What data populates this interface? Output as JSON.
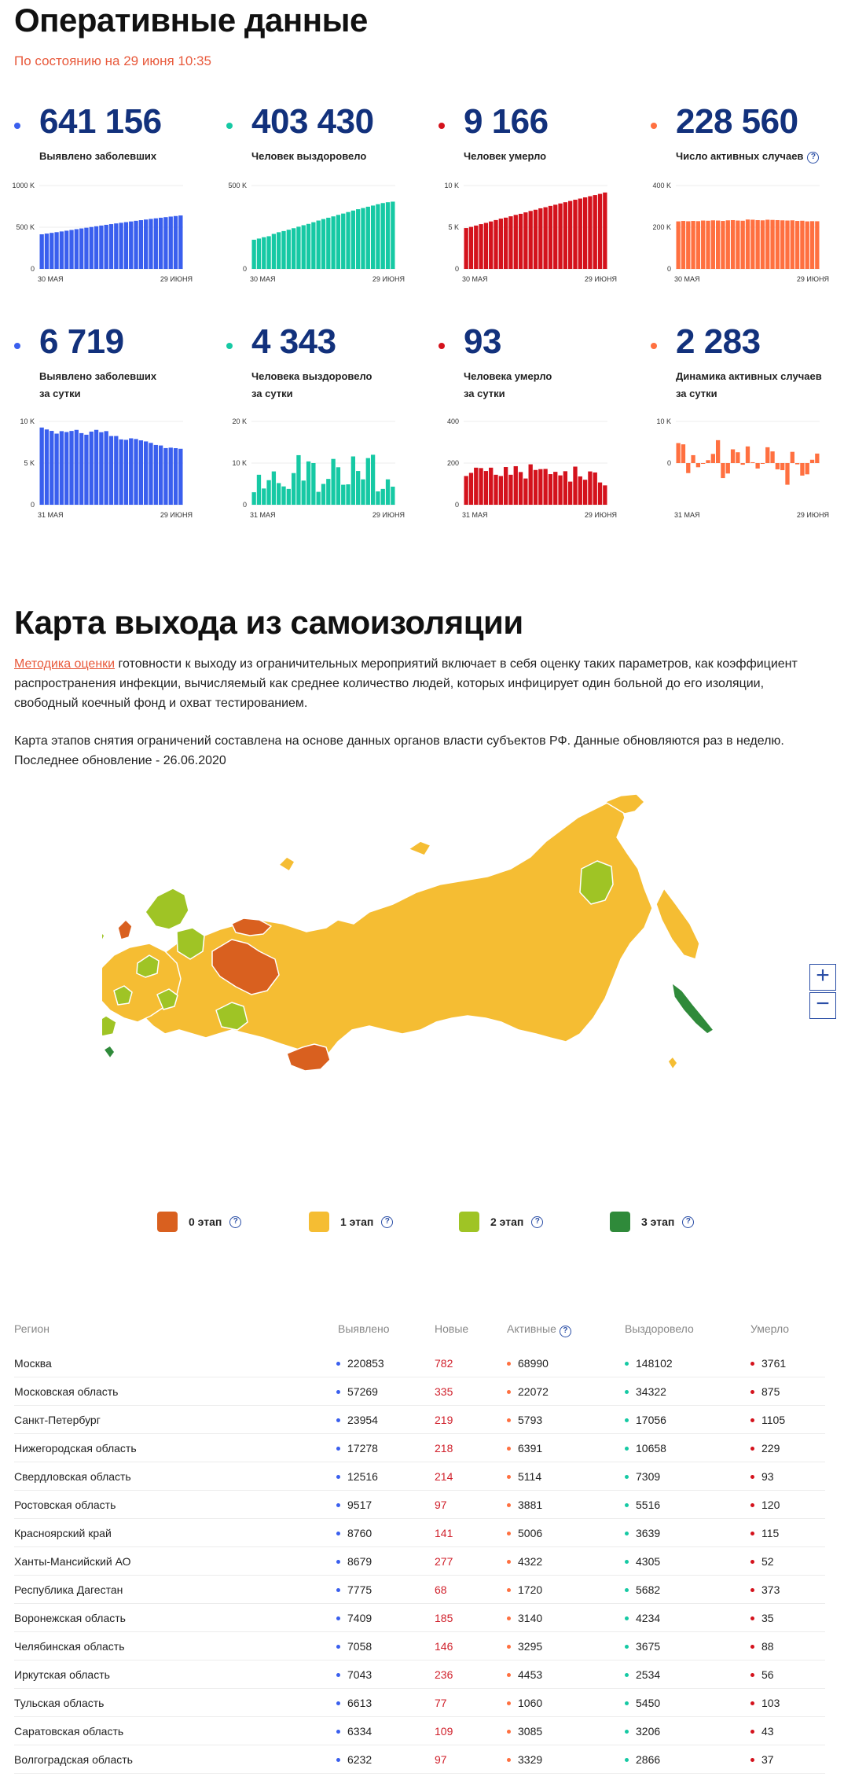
{
  "header": {
    "title": "Оперативные данные",
    "as_of": "По состоянию на 29 июня 10:35"
  },
  "colors": {
    "blue": "#3a5fee",
    "teal": "#16c9a4",
    "red": "#d4121c",
    "orange": "#ff7040",
    "stage0": "#d9601f",
    "stage1": "#f5bd33",
    "stage2": "#9fc425",
    "stage3": "#2f8a3a",
    "number": "#12317c",
    "accent": "#e8593b"
  },
  "stats": [
    {
      "value": "641 156",
      "label1": "Выявлено заболевших",
      "label2": "",
      "color": "#3a5fee"
    },
    {
      "value": "403 430",
      "label1": "Человек выздоровело",
      "label2": "",
      "color": "#16c9a4"
    },
    {
      "value": "9 166",
      "label1": "Человек умерло",
      "label2": "",
      "color": "#d4121c"
    },
    {
      "value": "228 560",
      "label1": "Число активных случаев",
      "label2": "",
      "color": "#ff7040"
    },
    {
      "value": "6 719",
      "label1": "Выявлено заболевших",
      "label2": "за сутки",
      "color": "#3a5fee"
    },
    {
      "value": "4 343",
      "label1": "Человека выздоровело",
      "label2": "за сутки",
      "color": "#16c9a4"
    },
    {
      "value": "93",
      "label1": "Человека умерло",
      "label2": "за сутки",
      "color": "#d4121c"
    },
    {
      "value": "2 283",
      "label1": "Динамика активных случаев",
      "label2": "за сутки",
      "color": "#ff7040"
    }
  ],
  "chart_data": [
    {
      "type": "bar",
      "title": "",
      "x_start": "30 МАЯ",
      "x_end": "29 ИЮНЯ",
      "yticks": [
        "1000 K",
        "500 K",
        "0"
      ],
      "ylim": [
        0,
        1000000
      ],
      "color": "#3a5fee",
      "values": [
        414878,
        423741,
        432277,
        440538,
        449256,
        458102,
        467073,
        476658,
        485253,
        493657,
        502436,
        511423,
        520129,
        528964,
        537210,
        545458,
        553301,
        561091,
        569063,
        576952,
        584680,
        592280,
        599705,
        606881,
        613994,
        620794,
        627646,
        634437,
        641156
      ]
    },
    {
      "type": "bar",
      "title": "",
      "x_start": "30 МАЯ",
      "x_end": "29 ИЮНЯ",
      "yticks": [
        "500 K",
        "0"
      ],
      "ylim": [
        0,
        500000
      ],
      "color": "#16c9a4",
      "values": [
        175000,
        182000,
        190000,
        196000,
        210000,
        220000,
        227000,
        235000,
        244000,
        253000,
        262000,
        270000,
        280000,
        290000,
        299000,
        307000,
        315000,
        324000,
        332000,
        341000,
        350000,
        358000,
        365000,
        373000,
        380000,
        388000,
        395000,
        400000,
        403430
      ]
    },
    {
      "type": "bar",
      "title": "",
      "x_start": "30 МАЯ",
      "x_end": "29 ИЮНЯ",
      "yticks": [
        "10 K",
        "5 K",
        "0"
      ],
      "ylim": [
        0,
        10000
      ],
      "color": "#d4121c",
      "values": [
        4900,
        5040,
        5200,
        5370,
        5520,
        5690,
        5860,
        6030,
        6150,
        6310,
        6480,
        6610,
        6780,
        6950,
        7100,
        7270,
        7400,
        7560,
        7700,
        7850,
        8000,
        8150,
        8300,
        8440,
        8580,
        8720,
        8860,
        9000,
        9166
      ]
    },
    {
      "type": "bar",
      "title": "",
      "x_start": "30 МАЯ",
      "x_end": "29 ИЮНЯ",
      "yticks": [
        "400 K",
        "200 K",
        "0"
      ],
      "ylim": [
        0,
        400000
      ],
      "color": "#ff7040",
      "values": [
        228000,
        230000,
        228500,
        230000,
        229000,
        232000,
        231000,
        233000,
        232000,
        230000,
        233000,
        234000,
        232000,
        231000,
        237000,
        236000,
        234000,
        233000,
        236000,
        235000,
        234000,
        233000,
        232000,
        233000,
        230000,
        231000,
        228000,
        229000,
        228560
      ]
    },
    {
      "type": "bar",
      "title": "",
      "x_start": "31 МАЯ",
      "x_end": "29 ИЮНЯ",
      "yticks": [
        "10 K",
        "5 K",
        "0"
      ],
      "ylim": [
        0,
        10000
      ],
      "color": "#3a5fee",
      "values": [
        9268,
        9035,
        8863,
        8536,
        8831,
        8726,
        8855,
        8985,
        8595,
        8404,
        8779,
        8987,
        8706,
        8835,
        8246,
        8248,
        7843,
        7790,
        7972,
        7889,
        7728,
        7600,
        7425,
        7176,
        7113,
        6800,
        6852,
        6791,
        6719
      ]
    },
    {
      "type": "bar",
      "title": "",
      "x_start": "31 МАЯ",
      "x_end": "29 ИЮНЯ",
      "yticks": [
        "20 K",
        "10 K",
        "0"
      ],
      "ylim": [
        0,
        20000
      ],
      "color": "#16c9a4",
      "values": [
        3000,
        7200,
        3900,
        5900,
        8000,
        5200,
        4400,
        3800,
        7600,
        11900,
        5800,
        10400,
        10000,
        3100,
        5000,
        6200,
        11000,
        9000,
        4800,
        4900,
        11600,
        8100,
        6100,
        11200,
        12000,
        3200,
        3800,
        6100,
        4343
      ]
    },
    {
      "type": "bar",
      "title": "",
      "x_start": "31 МАЯ",
      "x_end": "29 ИЮНЯ",
      "yticks": [
        "400",
        "200",
        "0"
      ],
      "ylim": [
        0,
        400
      ],
      "color": "#d4121c",
      "values": [
        138,
        153,
        178,
        176,
        162,
        178,
        144,
        138,
        181,
        144,
        185,
        157,
        126,
        194,
        167,
        171,
        172,
        147,
        158,
        141,
        161,
        111,
        183,
        136,
        120,
        160,
        155,
        107,
        93
      ]
    },
    {
      "type": "bar",
      "title": "",
      "x_start": "31 МАЯ",
      "x_end": "29 ИЮНЯ",
      "yticks": [
        "10 K",
        "0"
      ],
      "ylim": [
        -10000,
        10000
      ],
      "color": "#ff7040",
      "values": [
        4800,
        4500,
        -2400,
        1900,
        -1000,
        0,
        700,
        2200,
        5500,
        -3600,
        -2500,
        3300,
        2600,
        -400,
        4000,
        200,
        -1300,
        -100,
        3800,
        2800,
        -1500,
        -1700,
        -5200,
        2700,
        -300,
        -3000,
        -2700,
        800,
        2283
      ]
    }
  ],
  "section2": {
    "title": "Карта выхода из самоизоляции",
    "link": "Методика оценки",
    "p1_rest": " готовности к выходу из ограничительных мероприятий включает в себя оценку таких параметров, как коэффициент распространения инфекции, вычисляемый как среднее количество людей, которых инфицирует один больной до его изоляции, свободный коечный фонд и охват тестированием.",
    "p2": "Карта этапов снятия ограничений составлена на основе данных органов власти субъектов РФ. Данные обновляются раз в неделю.",
    "p3": "Последнее обновление - 26.06.2020"
  },
  "map": {
    "zoom_in": "+",
    "zoom_out": "−"
  },
  "legend": [
    {
      "label": "0 этап",
      "color": "#d9601f"
    },
    {
      "label": "1 этап",
      "color": "#f5bd33"
    },
    {
      "label": "2 этап",
      "color": "#9fc425"
    },
    {
      "label": "3 этап",
      "color": "#2f8a3a"
    }
  ],
  "table": {
    "headers": {
      "region": "Регион",
      "detected": "Выявлено",
      "new": "Новые",
      "active": "Активные",
      "recovered": "Выздоровело",
      "died": "Умерло"
    },
    "rows": [
      {
        "region": "Москва",
        "detected": "220853",
        "new": "782",
        "active": "68990",
        "recovered": "148102",
        "died": "3761"
      },
      {
        "region": "Московская область",
        "detected": "57269",
        "new": "335",
        "active": "22072",
        "recovered": "34322",
        "died": "875"
      },
      {
        "region": "Санкт-Петербург",
        "detected": "23954",
        "new": "219",
        "active": "5793",
        "recovered": "17056",
        "died": "1105"
      },
      {
        "region": "Нижегородская область",
        "detected": "17278",
        "new": "218",
        "active": "6391",
        "recovered": "10658",
        "died": "229"
      },
      {
        "region": "Свердловская область",
        "detected": "12516",
        "new": "214",
        "active": "5114",
        "recovered": "7309",
        "died": "93"
      },
      {
        "region": "Ростовская область",
        "detected": "9517",
        "new": "97",
        "active": "3881",
        "recovered": "5516",
        "died": "120"
      },
      {
        "region": "Красноярский край",
        "detected": "8760",
        "new": "141",
        "active": "5006",
        "recovered": "3639",
        "died": "115"
      },
      {
        "region": "Ханты-Мансийский АО",
        "detected": "8679",
        "new": "277",
        "active": "4322",
        "recovered": "4305",
        "died": "52"
      },
      {
        "region": "Республика Дагестан",
        "detected": "7775",
        "new": "68",
        "active": "1720",
        "recovered": "5682",
        "died": "373"
      },
      {
        "region": "Воронежская область",
        "detected": "7409",
        "new": "185",
        "active": "3140",
        "recovered": "4234",
        "died": "35"
      },
      {
        "region": "Челябинская область",
        "detected": "7058",
        "new": "146",
        "active": "3295",
        "recovered": "3675",
        "died": "88"
      },
      {
        "region": "Иркутская область",
        "detected": "7043",
        "new": "236",
        "active": "4453",
        "recovered": "2534",
        "died": "56"
      },
      {
        "region": "Тульская область",
        "detected": "6613",
        "new": "77",
        "active": "1060",
        "recovered": "5450",
        "died": "103"
      },
      {
        "region": "Саратовская область",
        "detected": "6334",
        "new": "109",
        "active": "3085",
        "recovered": "3206",
        "died": "43"
      },
      {
        "region": "Волгоградская область",
        "detected": "6232",
        "new": "97",
        "active": "3329",
        "recovered": "2866",
        "died": "37"
      }
    ]
  }
}
